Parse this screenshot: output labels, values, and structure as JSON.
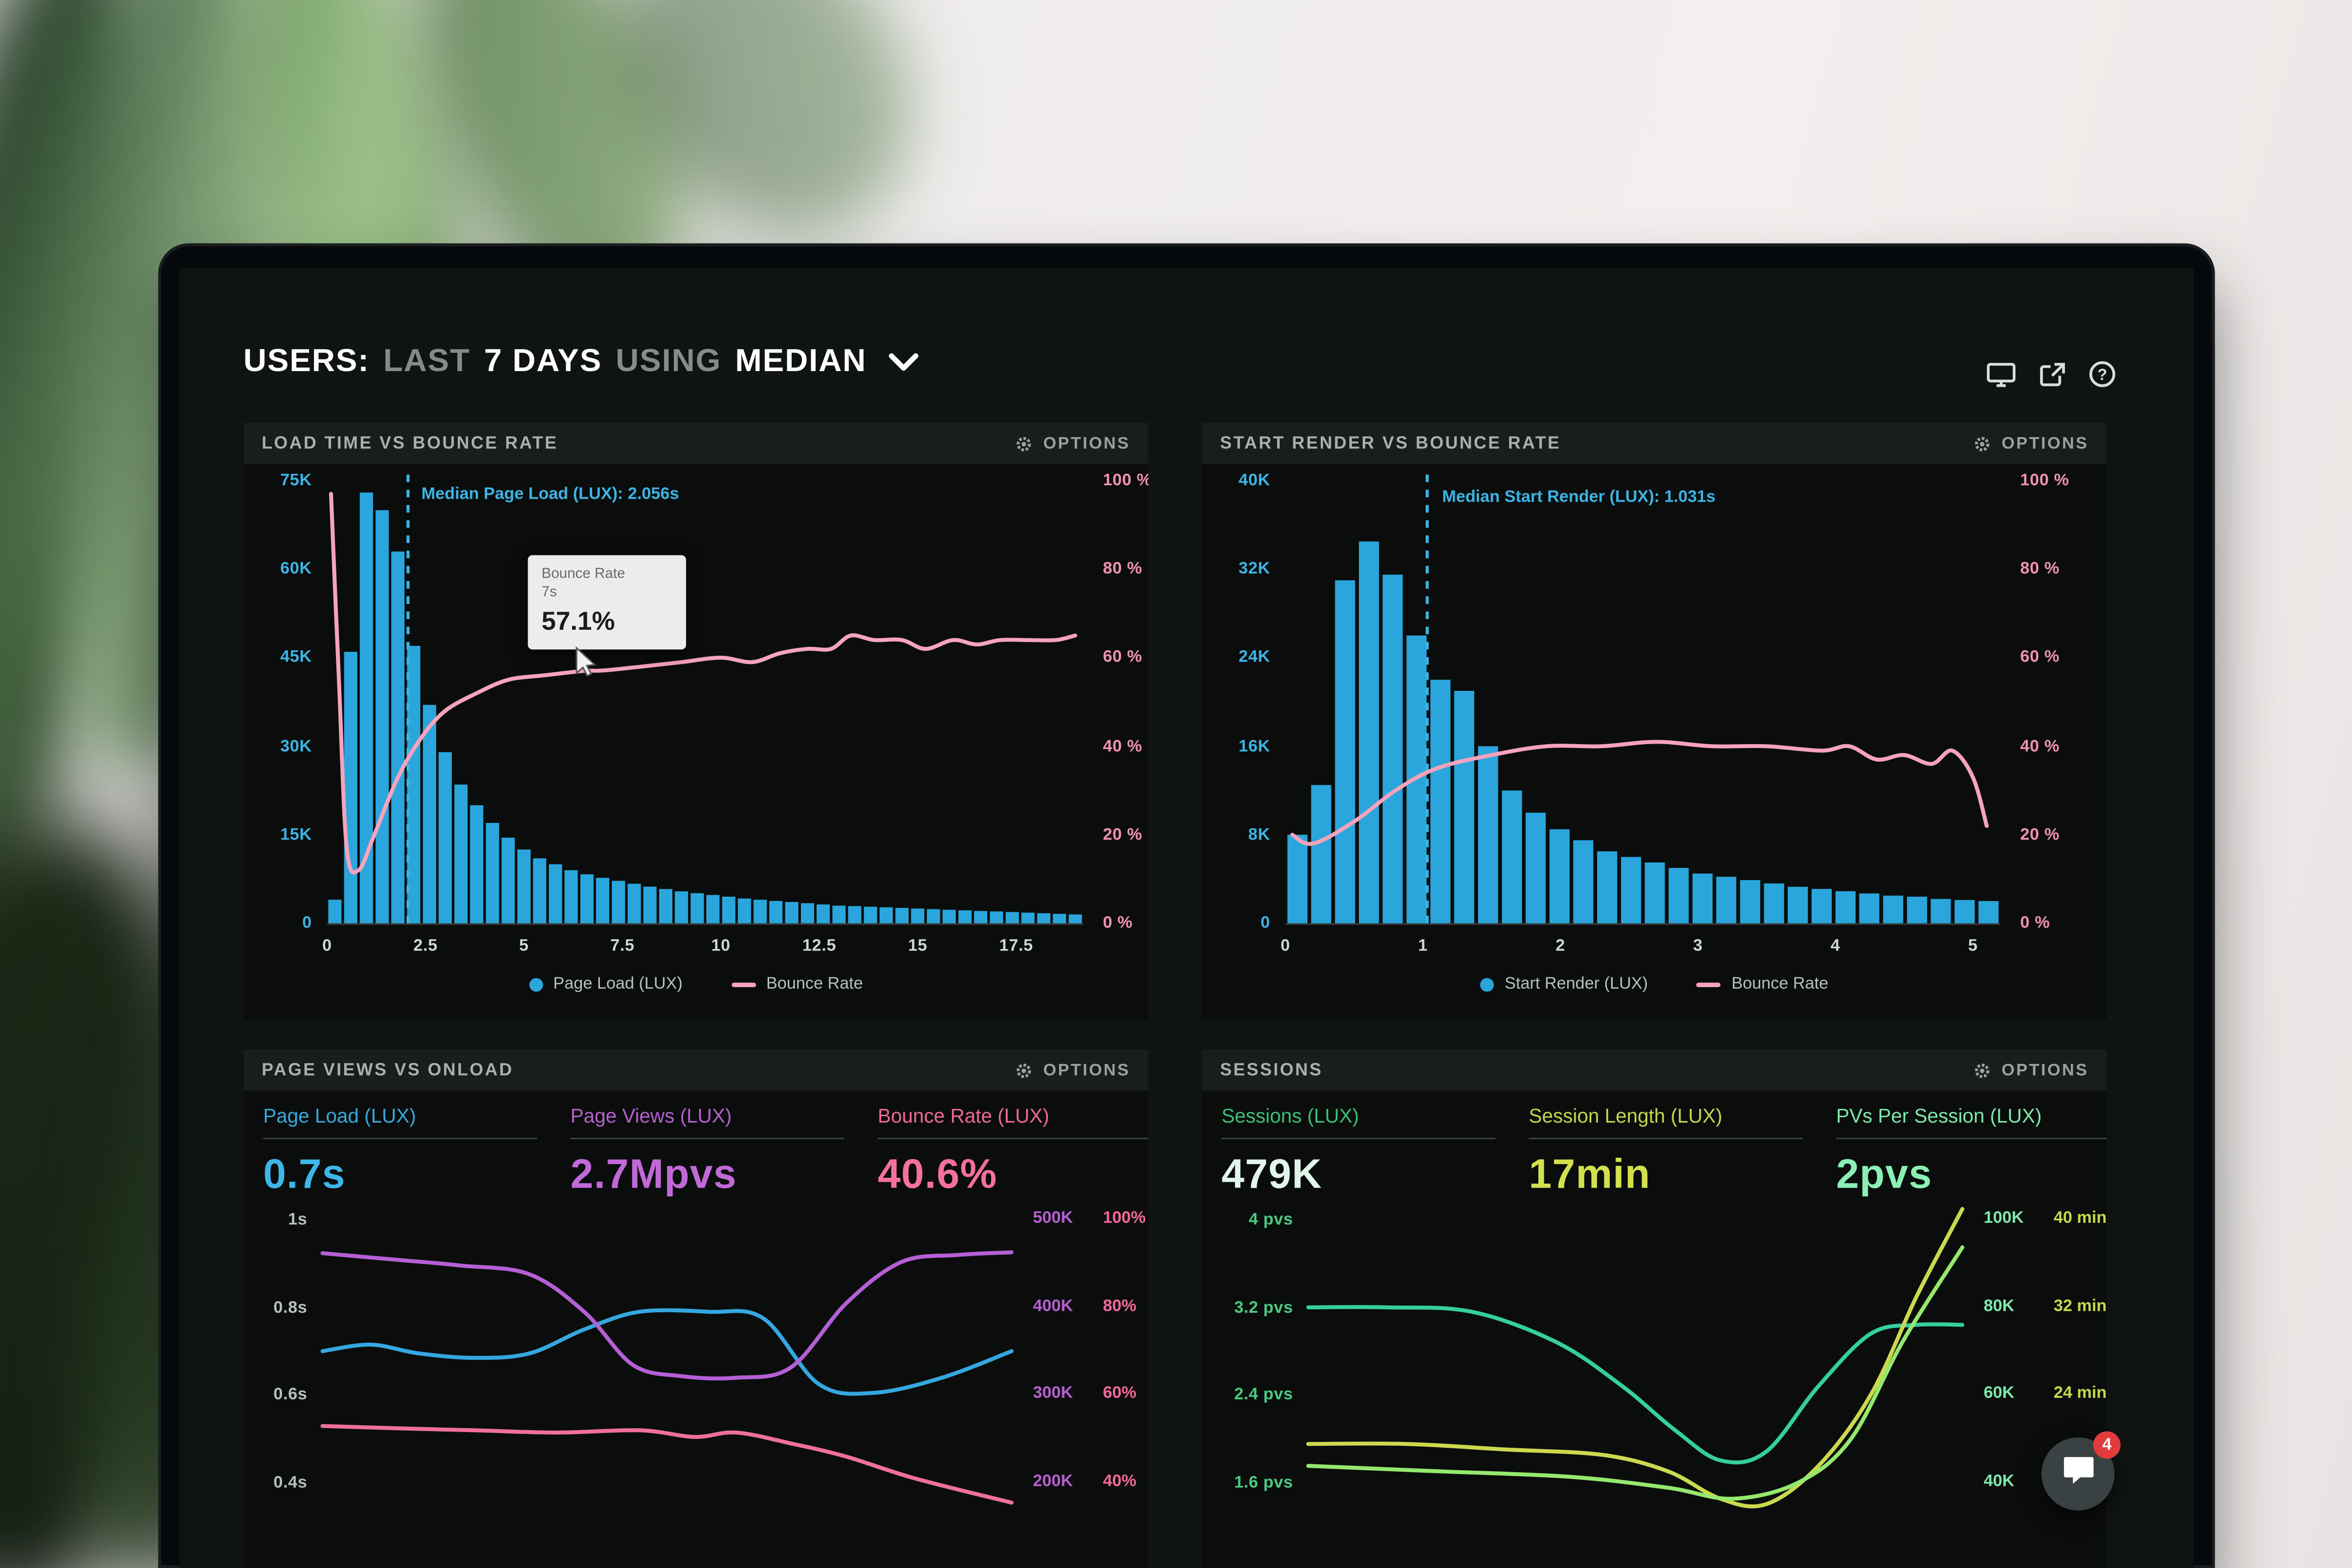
{
  "header": {
    "segments": [
      {
        "text": "USERS:"
      },
      {
        "text": "LAST"
      },
      {
        "text": "7 DAYS"
      },
      {
        "text": "USING"
      },
      {
        "text": "MEDIAN"
      }
    ],
    "icons": [
      "display-icon",
      "share-icon",
      "help-icon"
    ]
  },
  "panels": {
    "load_time": {
      "title": "LOAD TIME VS BOUNCE RATE",
      "options_label": "OPTIONS",
      "median_label": "Median Page Load (LUX): 2.056s",
      "tooltip": {
        "title": "Bounce Rate",
        "sub": "7s",
        "value": "57.1%"
      },
      "legend": [
        {
          "label": "Page Load (LUX)"
        },
        {
          "label": "Bounce Rate"
        }
      ]
    },
    "start_render": {
      "title": "START RENDER VS BOUNCE RATE",
      "options_label": "OPTIONS",
      "median_label": "Median Start Render (LUX): 1.031s",
      "legend": [
        {
          "label": "Start Render (LUX)"
        },
        {
          "label": "Bounce Rate"
        }
      ]
    },
    "page_views": {
      "title": "PAGE VIEWS VS ONLOAD",
      "options_label": "OPTIONS",
      "metrics": [
        {
          "label": "Page Load (LUX)",
          "value": "0.7s"
        },
        {
          "label": "Page Views (LUX)",
          "value": "2.7Mpvs"
        },
        {
          "label": "Bounce Rate (LUX)",
          "value": "40.6%"
        }
      ]
    },
    "sessions": {
      "title": "SESSIONS",
      "options_label": "OPTIONS",
      "metrics": [
        {
          "label": "Sessions (LUX)",
          "value": "479K"
        },
        {
          "label": "Session Length (LUX)",
          "value": "17min"
        },
        {
          "label": "PVs Per Session (LUX)",
          "value": "2pvs"
        }
      ]
    }
  },
  "chat": {
    "badge": "4"
  },
  "chart_data": [
    {
      "id": "load_time",
      "type": "histogram+line",
      "title": "LOAD TIME VS BOUNCE RATE",
      "x_domain": [
        0,
        19.2
      ],
      "bin_width": 0.4,
      "x_ticks": [
        0,
        2.5,
        5,
        7.5,
        10,
        12.5,
        15,
        17.5
      ],
      "x_tick_labels": [
        "0",
        "2.5",
        "5",
        "7.5",
        "10",
        "12.5",
        "15",
        "17.5"
      ],
      "y_left_max": 75,
      "y_left_labels": [
        "75K",
        "60K",
        "45K",
        "30K",
        "15K",
        "0"
      ],
      "y_right_labels": [
        "100 %",
        "80 %",
        "60 %",
        "40 %",
        "20 %",
        "0 %"
      ],
      "bars_k": [
        4,
        46,
        73,
        70,
        63,
        47,
        37,
        29,
        23.5,
        20,
        17,
        14.5,
        12.5,
        11,
        10,
        9,
        8.3,
        7.7,
        7.2,
        6.7,
        6.2,
        5.8,
        5.4,
        5.1,
        4.8,
        4.5,
        4.2,
        4,
        3.8,
        3.6,
        3.4,
        3.2,
        3,
        2.9,
        2.8,
        2.7,
        2.6,
        2.5,
        2.4,
        2.3,
        2.2,
        2.1,
        2,
        1.9,
        1.8,
        1.7,
        1.6,
        1.5
      ],
      "line_pct": [
        [
          0.1,
          97
        ],
        [
          0.3,
          55
        ],
        [
          0.5,
          17
        ],
        [
          0.8,
          12
        ],
        [
          1.2,
          20
        ],
        [
          1.8,
          33
        ],
        [
          2.4,
          42
        ],
        [
          3,
          48
        ],
        [
          3.8,
          52
        ],
        [
          4.6,
          55
        ],
        [
          5.5,
          56
        ],
        [
          6.5,
          57
        ],
        [
          7,
          57.1
        ],
        [
          8,
          58
        ],
        [
          9,
          59
        ],
        [
          10,
          60
        ],
        [
          10.8,
          59
        ],
        [
          11.5,
          61
        ],
        [
          12.2,
          62
        ],
        [
          12.8,
          62
        ],
        [
          13.3,
          65
        ],
        [
          13.9,
          64
        ],
        [
          14.6,
          64
        ],
        [
          15.2,
          62
        ],
        [
          15.9,
          64
        ],
        [
          16.5,
          63
        ],
        [
          17.1,
          64
        ],
        [
          17.8,
          64
        ],
        [
          18.5,
          64
        ],
        [
          19,
          65
        ]
      ],
      "median_s": 2.056,
      "colors": {
        "bar": "#2aa6dc",
        "line": "#f6a3bd",
        "median": "#3cb4e5",
        "left_axis": "#3cb4e5",
        "right_axis": "#f191b2",
        "x_axis": "#cfd5d4"
      }
    },
    {
      "id": "start_render",
      "type": "histogram+line",
      "title": "START RENDER VS BOUNCE RATE",
      "x_domain": [
        0,
        5.2
      ],
      "bin_width": 0.17333,
      "x_ticks": [
        0,
        1,
        2,
        3,
        4,
        5
      ],
      "x_tick_labels": [
        "0",
        "1",
        "2",
        "3",
        "4",
        "5"
      ],
      "y_left_max": 40,
      "y_left_labels": [
        "40K",
        "32K",
        "24K",
        "16K",
        "8K",
        "0"
      ],
      "y_right_labels": [
        "100 %",
        "80 %",
        "60 %",
        "40 %",
        "20 %",
        "0 %"
      ],
      "bars_k": [
        8,
        12.5,
        31,
        34.5,
        31.5,
        26,
        22,
        21,
        16,
        12,
        10,
        8.5,
        7.5,
        6.5,
        6,
        5.5,
        5,
        4.5,
        4.2,
        3.9,
        3.6,
        3.3,
        3.1,
        2.9,
        2.7,
        2.5,
        2.4,
        2.2,
        2.1,
        2
      ],
      "line_pct": [
        [
          0.05,
          20
        ],
        [
          0.2,
          18
        ],
        [
          0.5,
          23
        ],
        [
          0.8,
          30
        ],
        [
          1.1,
          35
        ],
        [
          1.5,
          38
        ],
        [
          1.9,
          40
        ],
        [
          2.3,
          40
        ],
        [
          2.7,
          41
        ],
        [
          3.1,
          40
        ],
        [
          3.5,
          40
        ],
        [
          3.9,
          39
        ],
        [
          4.1,
          40
        ],
        [
          4.3,
          37
        ],
        [
          4.5,
          38
        ],
        [
          4.7,
          36
        ],
        [
          4.85,
          39
        ],
        [
          5,
          33
        ],
        [
          5.1,
          22
        ]
      ],
      "median_s": 1.031,
      "colors": {
        "bar": "#2aa6dc",
        "line": "#f6a3bd",
        "median": "#3cb4e5",
        "left_axis": "#3cb4e5",
        "right_axis": "#f191b2",
        "x_axis": "#cfd5d4"
      }
    },
    {
      "id": "page_views",
      "type": "line",
      "title": "PAGE VIEWS VS ONLOAD",
      "y_left_labels": [
        "1s",
        "0.8s",
        "0.6s",
        "0.4s"
      ],
      "y_right_pairs": [
        [
          "500K",
          "100%"
        ],
        [
          "400K",
          "80%"
        ],
        [
          "300K",
          "60%"
        ],
        [
          "200K",
          "40%"
        ]
      ],
      "series": [
        {
          "name": "Page Load (LUX)",
          "unit": "s",
          "color": "#35a7e0",
          "map": {
            "top": 1.014,
            "bottom": 0.364
          },
          "points": [
            [
              0,
              0.7
            ],
            [
              0.07,
              0.715
            ],
            [
              0.14,
              0.695
            ],
            [
              0.22,
              0.685
            ],
            [
              0.3,
              0.695
            ],
            [
              0.38,
              0.75
            ],
            [
              0.46,
              0.79
            ],
            [
              0.56,
              0.79
            ],
            [
              0.64,
              0.775
            ],
            [
              0.72,
              0.625
            ],
            [
              0.8,
              0.605
            ],
            [
              0.9,
              0.64
            ],
            [
              1,
              0.7
            ]
          ]
        },
        {
          "name": "Page Views (LUX)",
          "unit": "K",
          "color": "#b55fd6",
          "map": {
            "top": 506.9,
            "bottom": 182.7
          },
          "points": [
            [
              0,
              462
            ],
            [
              0.1,
              455
            ],
            [
              0.2,
              448
            ],
            [
              0.3,
              438
            ],
            [
              0.38,
              395
            ],
            [
              0.45,
              335
            ],
            [
              0.52,
              322
            ],
            [
              0.6,
              320
            ],
            [
              0.68,
              332
            ],
            [
              0.76,
              405
            ],
            [
              0.84,
              452
            ],
            [
              0.92,
              460
            ],
            [
              1,
              463
            ]
          ]
        },
        {
          "name": "Bounce Rate (LUX)",
          "unit": "%",
          "color": "#ef6f9f",
          "map": {
            "top": 101.4,
            "bottom": 36.5
          },
          "points": [
            [
              0,
              53
            ],
            [
              0.1,
              52.5
            ],
            [
              0.22,
              52
            ],
            [
              0.34,
              51.5
            ],
            [
              0.46,
              52
            ],
            [
              0.54,
              50.5
            ],
            [
              0.6,
              51.5
            ],
            [
              0.68,
              49
            ],
            [
              0.76,
              46
            ],
            [
              0.86,
              41
            ],
            [
              1,
              35.5
            ]
          ]
        }
      ],
      "colors": {
        "left_axis": "#b8bfbe",
        "pair_a": "#b75fd0",
        "pair_b": "#f2679c"
      }
    },
    {
      "id": "sessions",
      "type": "line",
      "title": "SESSIONS",
      "y_left_labels": [
        "4 pvs",
        "3.2 pvs",
        "2.4 pvs",
        "1.6 pvs"
      ],
      "y_right_pairs": [
        [
          "100K",
          "40 min"
        ],
        [
          "80K",
          "32 min"
        ],
        [
          "60K",
          "24 min"
        ],
        [
          "40K",
          ""
        ]
      ],
      "series": [
        {
          "name": "Sessions (LUX)",
          "unit": "K",
          "color": "#35cfa0",
          "map": {
            "top": 101.4,
            "bottom": 27.65
          },
          "points": [
            [
              0,
              80
            ],
            [
              0.12,
              80
            ],
            [
              0.25,
              79
            ],
            [
              0.38,
              72
            ],
            [
              0.48,
              62
            ],
            [
              0.56,
              52
            ],
            [
              0.63,
              45
            ],
            [
              0.7,
              47
            ],
            [
              0.78,
              62
            ],
            [
              0.86,
              74
            ],
            [
              0.93,
              76
            ],
            [
              1,
              76
            ]
          ]
        },
        {
          "name": "Session Length (LUX)",
          "unit": "min",
          "color": "#ccd94f",
          "map": {
            "top": 40.56,
            "bottom": 11.06
          },
          "points": [
            [
              0,
              19.5
            ],
            [
              0.15,
              19.5
            ],
            [
              0.3,
              19
            ],
            [
              0.45,
              18.5
            ],
            [
              0.55,
              17
            ],
            [
              0.63,
              14.5
            ],
            [
              0.7,
              14
            ],
            [
              0.78,
              17.5
            ],
            [
              0.86,
              24
            ],
            [
              0.93,
              33
            ],
            [
              1,
              41
            ]
          ]
        },
        {
          "name": "PVs Per Session (LUX)",
          "unit": "pvs",
          "color": "#95e86e",
          "map": {
            "top": 4.056,
            "bottom": 1.106
          },
          "points": [
            [
              0,
              1.75
            ],
            [
              0.2,
              1.7
            ],
            [
              0.4,
              1.65
            ],
            [
              0.55,
              1.55
            ],
            [
              0.65,
              1.45
            ],
            [
              0.75,
              1.6
            ],
            [
              0.83,
              2
            ],
            [
              0.91,
              2.9
            ],
            [
              1,
              3.75
            ]
          ]
        }
      ],
      "colors": {
        "left_axis": "#4cc983",
        "pair_a": "#7fe8ab",
        "pair_b": "#c8d64b"
      }
    }
  ]
}
